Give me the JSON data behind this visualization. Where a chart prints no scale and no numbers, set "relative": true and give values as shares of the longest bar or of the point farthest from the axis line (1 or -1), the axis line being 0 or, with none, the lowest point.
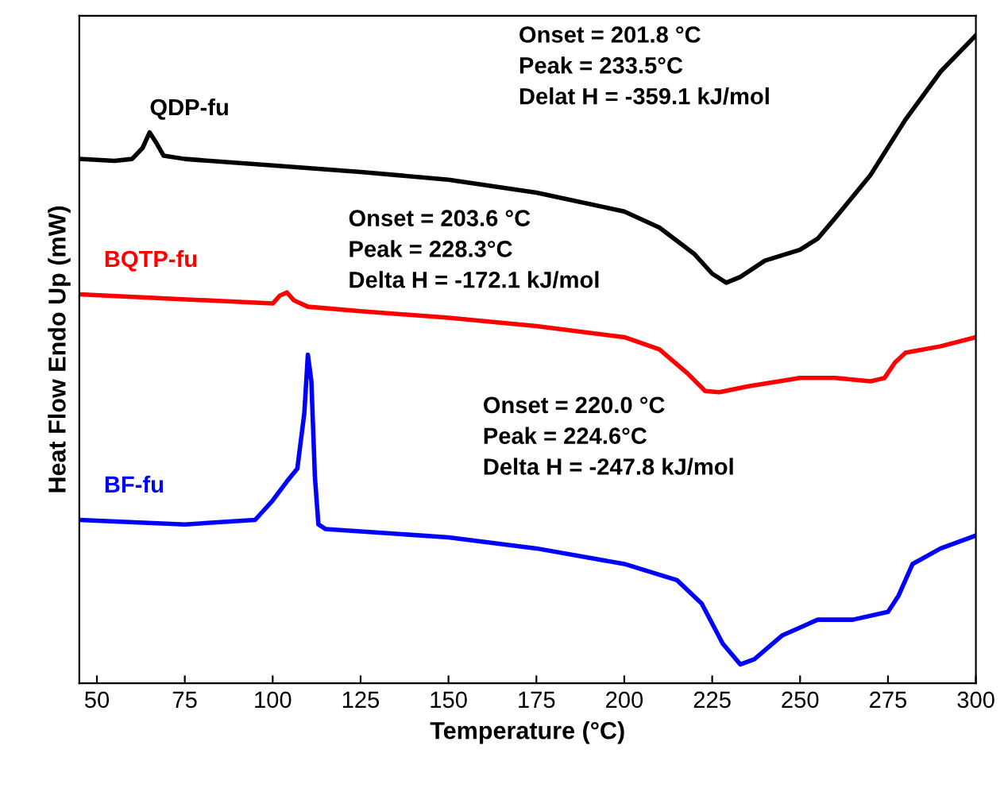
{
  "chart_data": {
    "type": "line",
    "relative": true,
    "xlabel": "Temperature (°C)",
    "ylabel": "Heat Flow Endo Up (mW)",
    "xlim": [
      45,
      300
    ],
    "xticks": [
      50,
      75,
      100,
      125,
      150,
      175,
      200,
      225,
      250,
      275,
      300
    ],
    "annotations": [
      "Onset = 201.8 °C\nPeak = 233.5°C\nDelat H = -359.1 kJ/mol",
      "Onset = 203.6 °C\nPeak = 228.3°C\nDelta H = -172.1 kJ/mol",
      "Onset = 220.0 °C\nPeak = 224.6°C\nDelta H = -247.8 kJ/mol"
    ],
    "series": [
      {
        "name": "QDP-fu",
        "color": "#000000",
        "x": [
          45,
          55,
          60,
          63,
          65,
          67,
          69,
          75,
          100,
          125,
          150,
          175,
          200,
          210,
          220,
          225,
          229,
          233,
          240,
          250,
          255,
          260,
          270,
          280,
          290,
          300
        ],
        "values": [
          0.809,
          0.806,
          0.809,
          0.826,
          0.85,
          0.833,
          0.814,
          0.809,
          0.799,
          0.789,
          0.777,
          0.757,
          0.728,
          0.703,
          0.662,
          0.632,
          0.618,
          0.627,
          0.652,
          0.669,
          0.686,
          0.718,
          0.784,
          0.87,
          0.944,
          1
        ]
      },
      {
        "name": "BQTP-fu",
        "color": "#ff0000",
        "x": [
          45,
          100,
          102,
          104,
          106,
          110,
          125,
          150,
          175,
          200,
          210,
          218,
          223,
          227,
          235,
          250,
          260,
          270,
          274,
          277,
          280,
          290,
          300
        ],
        "values": [
          0.6,
          0.586,
          0.598,
          0.603,
          0.591,
          0.581,
          0.574,
          0.564,
          0.551,
          0.534,
          0.515,
          0.478,
          0.451,
          0.449,
          0.458,
          0.471,
          0.471,
          0.466,
          0.471,
          0.495,
          0.51,
          0.52,
          0.534
        ]
      },
      {
        "name": "BF-fu",
        "color": "#0000ff",
        "x": [
          45,
          75,
          95,
          100,
          104,
          107,
          109,
          110,
          111,
          112,
          113,
          115,
          150,
          175,
          200,
          215,
          222,
          228,
          233,
          237,
          245,
          255,
          265,
          275,
          278,
          282,
          290,
          300
        ],
        "values": [
          0.252,
          0.245,
          0.252,
          0.282,
          0.311,
          0.331,
          0.417,
          0.507,
          0.466,
          0.319,
          0.245,
          0.238,
          0.225,
          0.208,
          0.184,
          0.159,
          0.123,
          0.061,
          0.029,
          0.037,
          0.074,
          0.098,
          0.098,
          0.11,
          0.135,
          0.184,
          0.208,
          0.228
        ]
      }
    ]
  }
}
